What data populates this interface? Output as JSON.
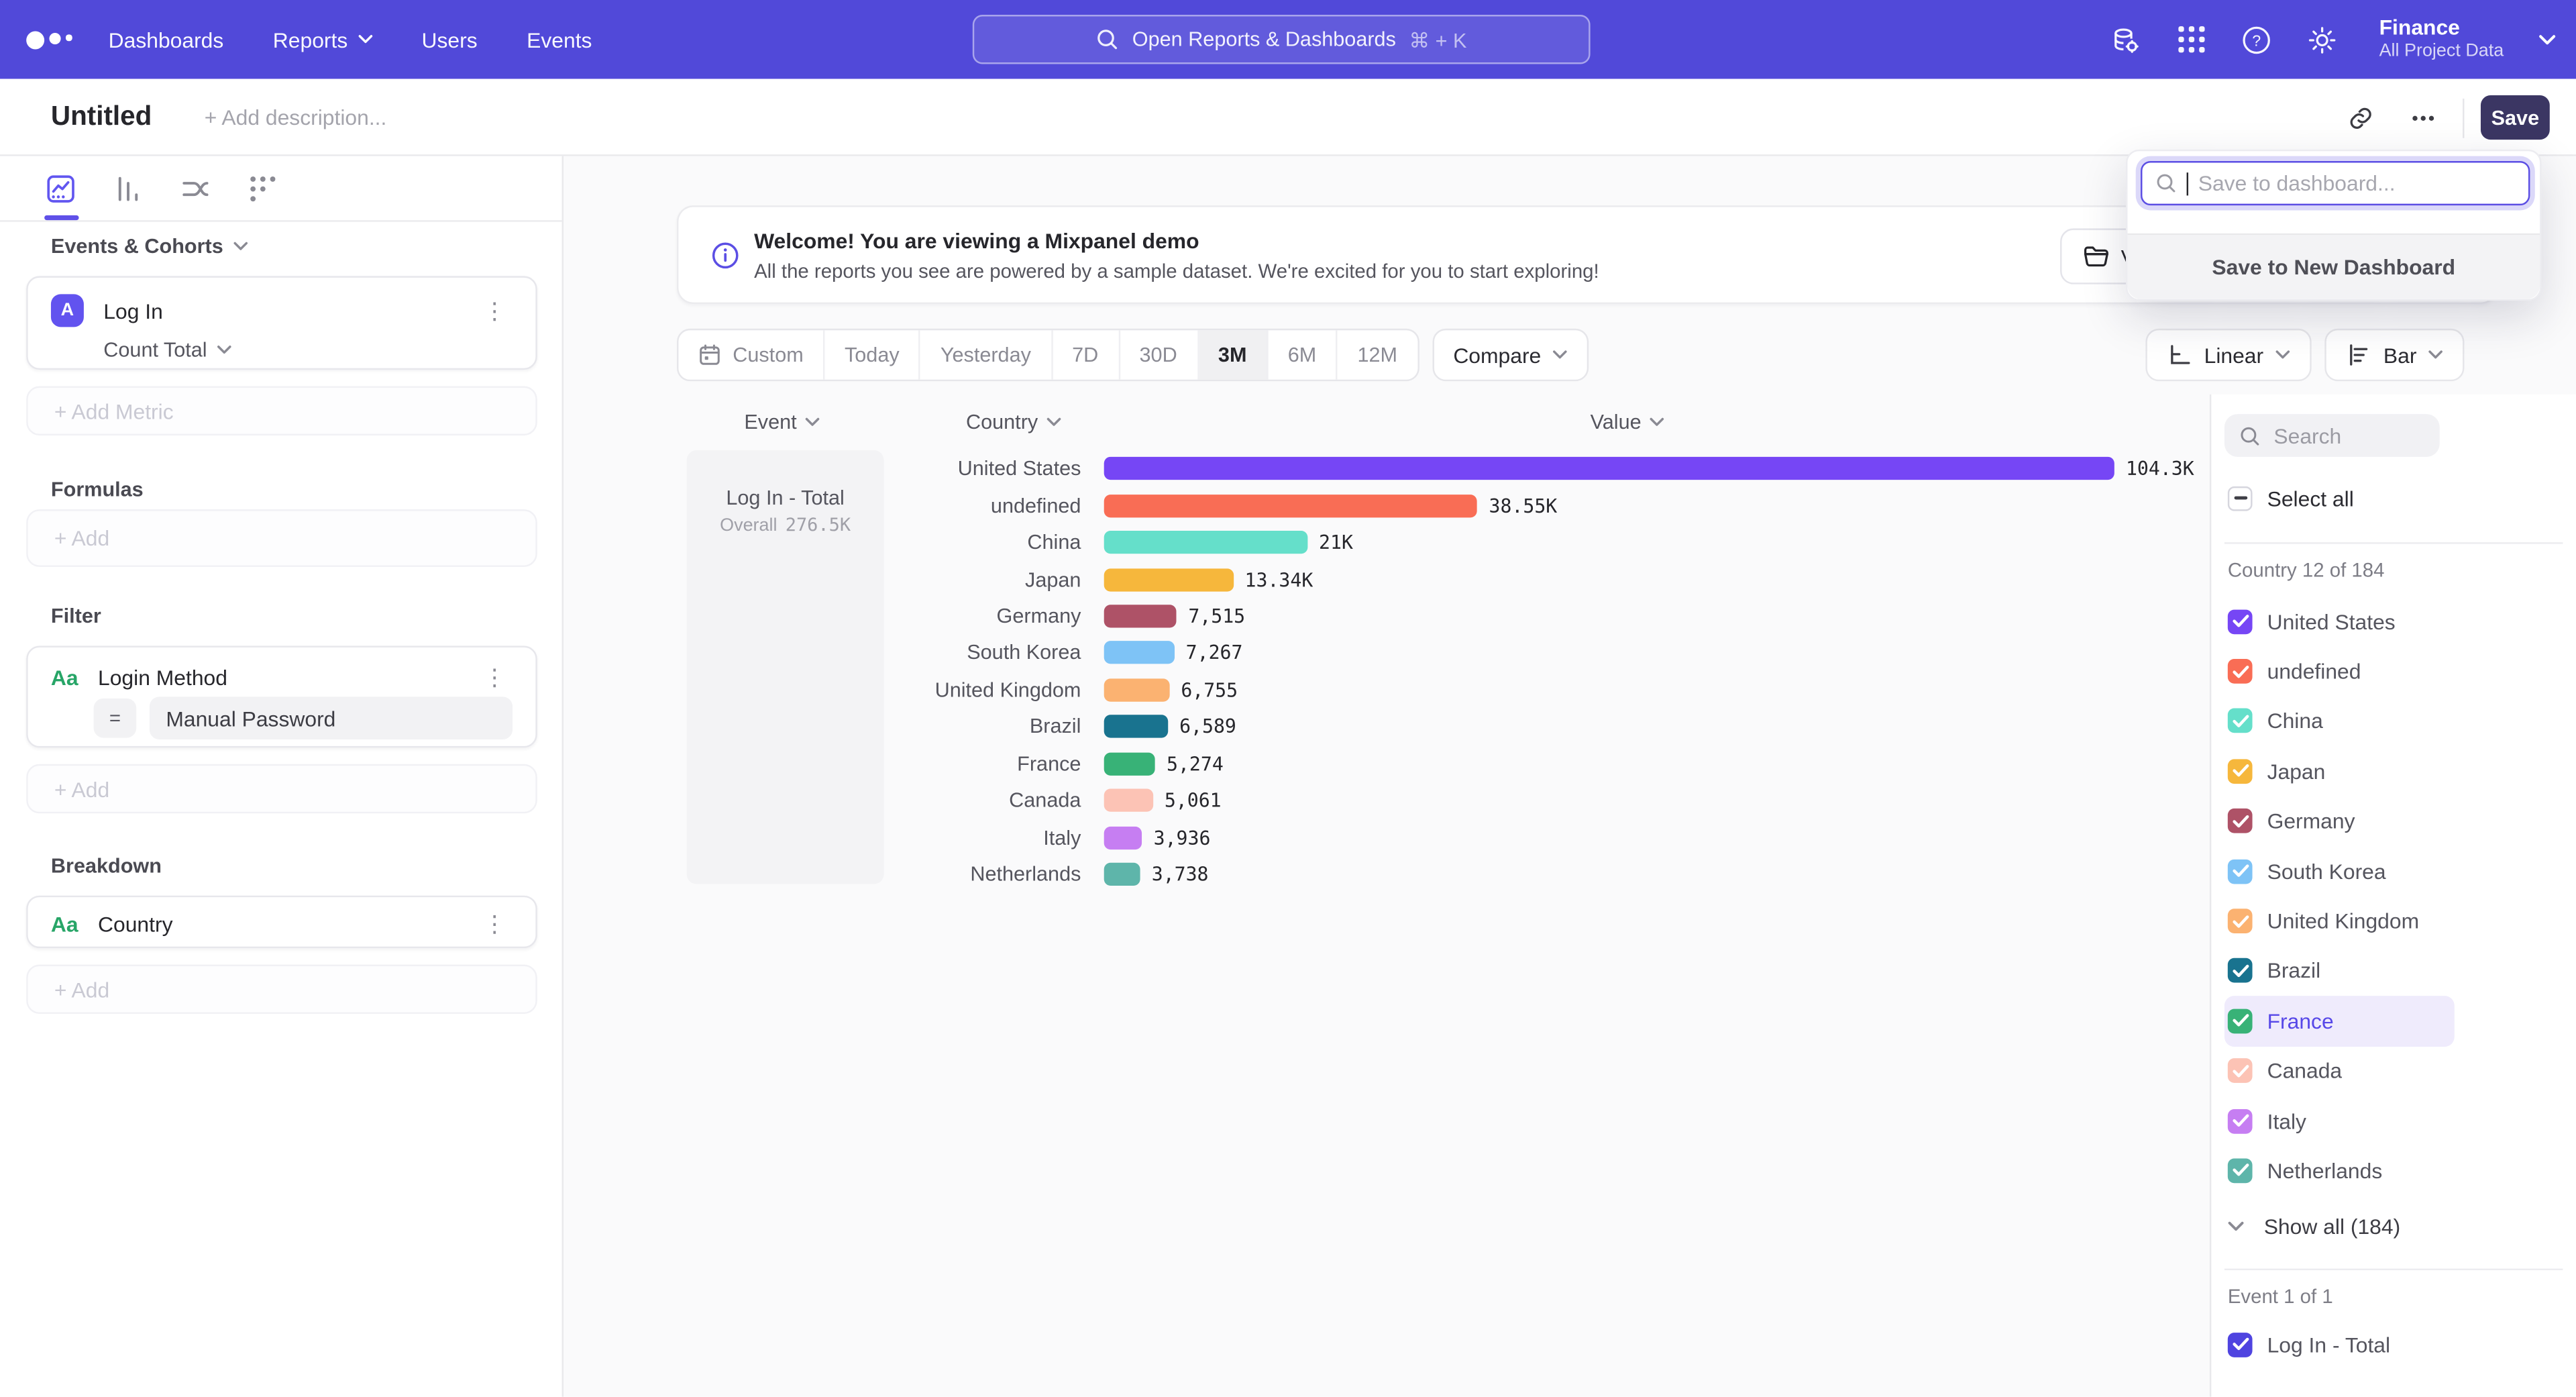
{
  "colors": {
    "nav_background": "#5149d9",
    "accent": "#5b4ee4",
    "save_button": "#3b3663",
    "selected_row_background": "#efebfc"
  },
  "nav": {
    "menu": [
      {
        "label": "Dashboards",
        "chevron": false
      },
      {
        "label": "Reports",
        "chevron": true
      },
      {
        "label": "Users",
        "chevron": false
      },
      {
        "label": "Events",
        "chevron": false
      }
    ],
    "search": {
      "placeholder": "Open Reports & Dashboards",
      "shortcut": "⌘ + K"
    },
    "project": {
      "name": "Finance",
      "scope": "All Project Data"
    }
  },
  "header": {
    "title": "Untitled",
    "description_placeholder": "+ Add description...",
    "save_label": "Save"
  },
  "save_popover": {
    "input_placeholder": "Save to dashboard...",
    "new_dashboard_label": "Save to New Dashboard"
  },
  "sidebar": {
    "events_header": "Events & Cohorts",
    "metric": {
      "badge": "A",
      "name": "Log In",
      "aggregation": "Count Total"
    },
    "add_metric_label": "+ Add Metric",
    "formulas_header": "Formulas",
    "formulas_add_label": "+ Add",
    "filter_header": "Filter",
    "filter": {
      "type_badge": "Aa",
      "name": "Login Method",
      "operator": "=",
      "value": "Manual Password"
    },
    "filter_add_label": "+ Add",
    "breakdown_header": "Breakdown",
    "breakdown": {
      "type_badge": "Aa",
      "name": "Country"
    },
    "breakdown_add_label": "+ Add"
  },
  "banner": {
    "title": "Welcome! You are viewing a Mixpanel demo",
    "subtitle": "All the reports you see are powered by a sample dataset. We're excited for you to start exploring!",
    "button_visible_text": "V"
  },
  "toolbar": {
    "ranges": [
      "Custom",
      "Today",
      "Yesterday",
      "7D",
      "30D",
      "3M",
      "6M",
      "12M"
    ],
    "selected_range": "3M",
    "compare_label": "Compare",
    "linear_label": "Linear",
    "bar_label": "Bar"
  },
  "chart": {
    "event_header": "Event",
    "country_header": "Country",
    "value_header": "Value",
    "event_name": "Log In - Total",
    "overall_label": "Overall",
    "overall_value": "276.5K"
  },
  "chart_data": {
    "type": "bar",
    "orientation": "horizontal",
    "title": "Log In - Total by Country",
    "series_name": "Log In - Total",
    "overall": {
      "label": "Overall",
      "value": 276500,
      "value_label": "276.5K"
    },
    "categories": [
      "United States",
      "undefined",
      "China",
      "Japan",
      "Germany",
      "South Korea",
      "United Kingdom",
      "Brazil",
      "France",
      "Canada",
      "Italy",
      "Netherlands"
    ],
    "values": [
      104300,
      38550,
      21000,
      13340,
      7515,
      7267,
      6755,
      6589,
      5274,
      5061,
      3936,
      3738
    ],
    "value_labels": [
      "104.3K",
      "38.55K",
      "21K",
      "13.34K",
      "7,515",
      "7,267",
      "6,755",
      "6,589",
      "5,274",
      "5,061",
      "3,936",
      "3,738"
    ],
    "colors": [
      "#7646f5",
      "#f96d55",
      "#65dfca",
      "#f6b73c",
      "#ae5267",
      "#7ec3f6",
      "#fbb271",
      "#19738f",
      "#38b277",
      "#fcc3b5",
      "#c67ef2",
      "#5eb5aa"
    ],
    "xlim": [
      0,
      104300
    ],
    "column_headers": [
      "Event",
      "Country",
      "Value"
    ],
    "grid": false,
    "legend": false
  },
  "filter_panel": {
    "search_placeholder": "Search",
    "select_all_label": "Select all",
    "country_count_label": "Country 12 of 184",
    "countries": [
      {
        "name": "United States",
        "color": "#7646f5",
        "checked": true,
        "highlighted": false
      },
      {
        "name": "undefined",
        "color": "#f96d55",
        "checked": true,
        "highlighted": false
      },
      {
        "name": "China",
        "color": "#65dfca",
        "checked": true,
        "highlighted": false
      },
      {
        "name": "Japan",
        "color": "#f6b73c",
        "checked": true,
        "highlighted": false
      },
      {
        "name": "Germany",
        "color": "#ae5267",
        "checked": true,
        "highlighted": false
      },
      {
        "name": "South Korea",
        "color": "#7ec3f6",
        "checked": true,
        "highlighted": false
      },
      {
        "name": "United Kingdom",
        "color": "#fbb271",
        "checked": true,
        "highlighted": false
      },
      {
        "name": "Brazil",
        "color": "#19738f",
        "checked": true,
        "highlighted": false
      },
      {
        "name": "France",
        "color": "#38b277",
        "checked": true,
        "highlighted": true
      },
      {
        "name": "Canada",
        "color": "#fcc3b5",
        "checked": true,
        "highlighted": false
      },
      {
        "name": "Italy",
        "color": "#c67ef2",
        "checked": true,
        "highlighted": false
      },
      {
        "name": "Netherlands",
        "color": "#5eb5aa",
        "checked": true,
        "highlighted": false
      }
    ],
    "show_all_label": "Show all (184)",
    "event_count_label": "Event 1 of 1",
    "events": [
      {
        "name": "Log In - Total",
        "color": "#4f44e0",
        "checked": true
      }
    ]
  }
}
